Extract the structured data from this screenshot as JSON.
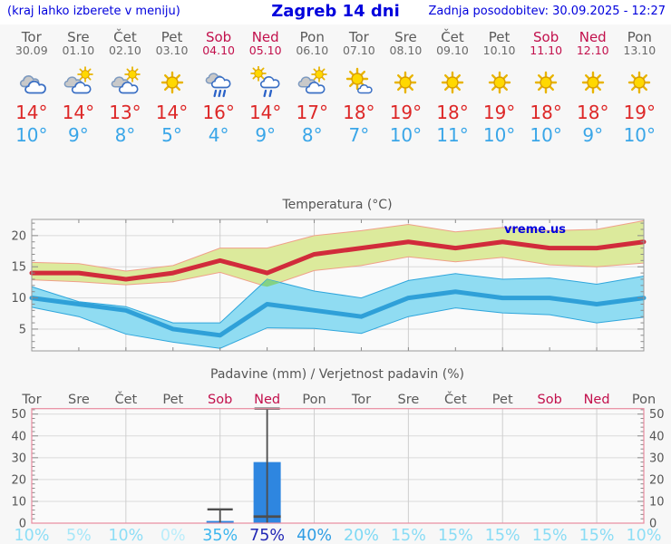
{
  "header": {
    "left": "(kraj lahko izberete v meniju)",
    "title": "Zagreb 14 dni",
    "right": "Zadnja posodobitev: 30.09.2025 - 12:27"
  },
  "watermark": "vreme.us",
  "days": [
    {
      "name": "Tor",
      "date": "30.09",
      "weekend": false,
      "icon": "cloudy",
      "high_label": "14°",
      "low_label": "10°"
    },
    {
      "name": "Sre",
      "date": "01.10",
      "weekend": false,
      "icon": "partly-sunny",
      "high_label": "14°",
      "low_label": "9°"
    },
    {
      "name": "Čet",
      "date": "02.10",
      "weekend": false,
      "icon": "partly-sunny",
      "high_label": "13°",
      "low_label": "8°"
    },
    {
      "name": "Pet",
      "date": "03.10",
      "weekend": false,
      "icon": "sunny",
      "high_label": "14°",
      "low_label": "5°"
    },
    {
      "name": "Sob",
      "date": "04.10",
      "weekend": true,
      "icon": "rain",
      "high_label": "16°",
      "low_label": "4°"
    },
    {
      "name": "Ned",
      "date": "05.10",
      "weekend": true,
      "icon": "sun-rain",
      "high_label": "14°",
      "low_label": "9°"
    },
    {
      "name": "Pon",
      "date": "06.10",
      "weekend": false,
      "icon": "partly-sunny",
      "high_label": "17°",
      "low_label": "8°"
    },
    {
      "name": "Tor",
      "date": "07.10",
      "weekend": false,
      "icon": "sun-cloud",
      "high_label": "18°",
      "low_label": "7°"
    },
    {
      "name": "Sre",
      "date": "08.10",
      "weekend": false,
      "icon": "sunny",
      "high_label": "19°",
      "low_label": "10°"
    },
    {
      "name": "Čet",
      "date": "09.10",
      "weekend": false,
      "icon": "sunny",
      "high_label": "18°",
      "low_label": "11°"
    },
    {
      "name": "Pet",
      "date": "10.10",
      "weekend": false,
      "icon": "sunny",
      "high_label": "19°",
      "low_label": "10°"
    },
    {
      "name": "Sob",
      "date": "11.10",
      "weekend": true,
      "icon": "sunny",
      "high_label": "18°",
      "low_label": "10°"
    },
    {
      "name": "Ned",
      "date": "12.10",
      "weekend": true,
      "icon": "sunny",
      "high_label": "18°",
      "low_label": "9°"
    },
    {
      "name": "Pon",
      "date": "13.10",
      "weekend": false,
      "icon": "sunny",
      "high_label": "19°",
      "low_label": "10°"
    }
  ],
  "chart_data": [
    {
      "type": "line",
      "title": "Temperatura (°C)",
      "categories": [
        "Tor",
        "Sre",
        "Čet",
        "Pet",
        "Sob",
        "Ned",
        "Pon",
        "Tor",
        "Sre",
        "Čet",
        "Pet",
        "Sob",
        "Ned",
        "Pon"
      ],
      "series": [
        {
          "name": "max temperature",
          "values": [
            14,
            14,
            13,
            14,
            16,
            14,
            17,
            18,
            19,
            18,
            19,
            18,
            18,
            19
          ],
          "band_upper": [
            15.7,
            15.5,
            14.3,
            15.2,
            18,
            18,
            20,
            20.8,
            21.8,
            20.6,
            21.3,
            20.8,
            21,
            22.4
          ],
          "band_lower": [
            12.9,
            12.6,
            12.1,
            12.6,
            14.1,
            11.8,
            14.4,
            15.2,
            16.6,
            15.8,
            16.5,
            15.3,
            15,
            15.6
          ],
          "color": "#d12b3b",
          "band_color": "#dcea9c",
          "band_edge": "#f0a089"
        },
        {
          "name": "min temperature",
          "values": [
            10,
            9,
            8,
            5,
            4,
            9,
            8,
            7,
            10,
            11,
            10,
            10,
            9,
            10
          ],
          "band_upper": [
            11.8,
            9.4,
            8.6,
            6,
            6,
            13,
            11.1,
            10,
            12.8,
            13.9,
            13,
            13.2,
            12.2,
            13.5
          ],
          "band_lower": [
            8.5,
            7,
            4.2,
            2.9,
            1.9,
            5.2,
            5.1,
            4.3,
            7,
            8.4,
            7.6,
            7.3,
            6,
            6.9
          ],
          "color": "#2fa0d8",
          "band_color": "#90dcf2",
          "band_edge": "#2fa6dc"
        }
      ],
      "overlap_patch": {
        "color": "#84d284",
        "points": [
          [
            4.87,
            12.0
          ],
          [
            5.0,
            13.0
          ],
          [
            5.28,
            12.45
          ],
          [
            5.0,
            11.8
          ]
        ]
      },
      "ylim": [
        1.5,
        22.6
      ],
      "yticks": [
        5,
        10,
        15,
        20
      ],
      "grid_x_days": [
        2,
        4,
        6,
        8,
        10,
        12
      ],
      "legend_position": "none",
      "grid": true
    },
    {
      "type": "bar",
      "title": "Padavine (mm) / Verjetnost padavin (%)",
      "categories": [
        "Tor",
        "Sre",
        "Čet",
        "Pet",
        "Sob",
        "Ned",
        "Pon",
        "Tor",
        "Sre",
        "Čet",
        "Pet",
        "Sob",
        "Ned",
        "Pon"
      ],
      "weekend_flags": [
        false,
        false,
        false,
        false,
        true,
        true,
        false,
        false,
        false,
        false,
        false,
        true,
        true,
        false
      ],
      "values": [
        0,
        0,
        0,
        0,
        1,
        28,
        0,
        0,
        0,
        0,
        0,
        0,
        0,
        0
      ],
      "whisker_high": [
        null,
        null,
        null,
        null,
        6.3,
        52.5,
        null,
        null,
        null,
        null,
        null,
        null,
        null,
        null
      ],
      "whisker_low": [
        null,
        null,
        null,
        null,
        0,
        3,
        null,
        null,
        null,
        null,
        null,
        null,
        null,
        null
      ],
      "probabilities": [
        "10%",
        "5%",
        "10%",
        "0%",
        "35%",
        "75%",
        "40%",
        "20%",
        "15%",
        "15%",
        "15%",
        "15%",
        "15%",
        "10%"
      ],
      "prob_colors": [
        "#8ddef6",
        "#a6e7f8",
        "#8ddef6",
        "#baedfa",
        "#3db6ee",
        "#2127b5",
        "#2f9de4",
        "#7fd9f4",
        "#89dcf5",
        "#89dcf5",
        "#89dcf5",
        "#89dcf5",
        "#89dcf5",
        "#8ddef6"
      ],
      "bar_color": "#2e86e0",
      "whisker_color": "#4d4d4d",
      "border_color": "#e88ca0",
      "ylim": [
        0,
        52.5
      ],
      "yticks": [
        0,
        10,
        20,
        30,
        40,
        50
      ],
      "grid_x_days": [
        2,
        4,
        6,
        8,
        10,
        12
      ],
      "grid": true
    }
  ]
}
